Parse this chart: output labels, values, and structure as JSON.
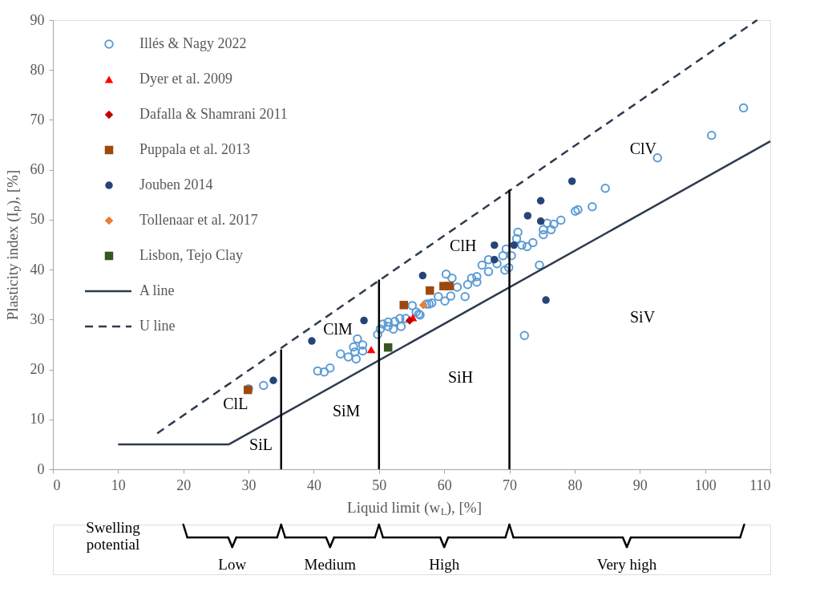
{
  "chart_data": {
    "type": "scatter",
    "xlabel": "Liquid limit (w$_{L}$), [%]",
    "ylabel": "Plasticity index (Iₚ), [%]",
    "xlim": [
      0,
      110
    ],
    "xticks": [
      0,
      10,
      20,
      30,
      40,
      50,
      60,
      70,
      80,
      90,
      100,
      110
    ],
    "ylim": [
      0,
      90
    ],
    "yticks": [
      0,
      10,
      20,
      30,
      40,
      50,
      60,
      70,
      80,
      90
    ],
    "grid": false,
    "legend": "top left",
    "series": [
      {
        "name": "Illés & Nagy  2022",
        "marker": "circle",
        "color": "#5b9bd5",
        "x": [
          30.0,
          32.3,
          40.6,
          41.6,
          42.5,
          44.1,
          45.3,
          46.5,
          46.3,
          47.5,
          46.1,
          47.5,
          46.7,
          49.8,
          50.2,
          50.6,
          51.4,
          52.2,
          51.4,
          52.4,
          53.2,
          53.4,
          54.1,
          55.1,
          55.7,
          56.3,
          57.7,
          56.1,
          57.3,
          58.1,
          59.1,
          60.1,
          61.0,
          60.3,
          61.2,
          62.0,
          63.2,
          63.6,
          64.2,
          65.0,
          65.0,
          65.8,
          66.8,
          66.8,
          68.1,
          69.0,
          69.3,
          69.9,
          69.5,
          70.3,
          71.3,
          71.1,
          71.9,
          72.7,
          73.6,
          74.6,
          75.2,
          75.2,
          75.8,
          76.4,
          76.8,
          77.9,
          80.1,
          80.5,
          82.7,
          84.7,
          72.3,
          92.7,
          101.0,
          105.9
        ],
        "values": [
          16.1,
          16.8,
          19.7,
          19.5,
          20.3,
          23.1,
          22.5,
          22.1,
          23.5,
          23.7,
          24.5,
          24.9,
          26.1,
          27.0,
          28.1,
          29.1,
          28.6,
          28.1,
          29.5,
          29.6,
          30.2,
          28.6,
          30.2,
          32.8,
          31.5,
          30.9,
          33.1,
          31.1,
          33.1,
          33.3,
          34.6,
          33.7,
          34.7,
          39.1,
          38.3,
          36.5,
          34.6,
          37.0,
          38.3,
          38.6,
          37.5,
          40.9,
          42.0,
          39.6,
          41.2,
          42.8,
          39.9,
          40.4,
          44.1,
          42.8,
          47.5,
          46.2,
          44.9,
          44.6,
          45.4,
          40.9,
          47.0,
          48.0,
          49.3,
          48.0,
          49.1,
          49.9,
          51.7,
          52.0,
          52.6,
          56.3,
          26.8,
          62.4,
          66.9,
          72.4
        ]
      },
      {
        "name": "Dyer et al. 2009",
        "marker": "triangle",
        "color": "#ff0000",
        "x": [
          48.8,
          55.2
        ],
        "values": [
          24.0,
          30.4
        ]
      },
      {
        "name": "Dafalla & Shamrani 2011",
        "marker": "diamond",
        "color": "#c00000",
        "x": [
          54.7
        ],
        "values": [
          29.8
        ]
      },
      {
        "name": "Puppala et al. 2013",
        "marker": "square",
        "color": "#9e480e",
        "x": [
          29.9,
          53.8,
          57.8,
          59.9,
          60.8
        ],
        "values": [
          15.9,
          32.9,
          35.8,
          36.7,
          36.7
        ]
      },
      {
        "name": "Jouben 2014",
        "marker": "circle",
        "color": "#264478",
        "x": [
          33.8,
          39.7,
          47.7,
          56.7,
          67.7,
          67.7,
          70.7,
          72.8,
          74.8,
          74.8,
          79.6,
          75.6
        ],
        "values": [
          17.8,
          25.7,
          29.8,
          38.8,
          44.9,
          42.0,
          44.9,
          50.8,
          53.8,
          49.7,
          57.7,
          33.9
        ]
      },
      {
        "name": "Tollenaar et al. 2017",
        "marker": "diamond",
        "color": "#ed7d31",
        "x": [
          56.8
        ],
        "values": [
          32.9
        ]
      },
      {
        "name": "Lisbon, Tejo Clay",
        "marker": "square",
        "color": "#375623",
        "x": [
          51.4
        ],
        "values": [
          24.4
        ]
      },
      {
        "name": "A line",
        "type": "line",
        "line_style": "solid",
        "color": "#2e3b4e",
        "x": [
          10,
          27,
          110
        ],
        "values": [
          5,
          5,
          65.7
        ]
      },
      {
        "name": "U line",
        "type": "line",
        "line_style": "dashed",
        "color": "#2e3b4e",
        "x": [
          16,
          108
        ],
        "values": [
          7.2,
          90
        ]
      },
      {
        "type": "line",
        "line_style": "solid",
        "color": "#000000",
        "x": [
          35,
          35
        ],
        "values": [
          0,
          24
        ]
      },
      {
        "type": "line",
        "line_style": "solid",
        "color": "#000000",
        "x": [
          50,
          50
        ],
        "values": [
          0,
          38
        ]
      },
      {
        "type": "line",
        "line_style": "solid",
        "color": "#000000",
        "x": [
          70,
          70
        ],
        "values": [
          0,
          56
        ]
      }
    ],
    "annotations": [
      "ClL",
      "SiL",
      "ClM",
      "SiM",
      "SiH",
      "ClH",
      "ClV",
      "SiV",
      "Swelling potential",
      "Low",
      "Medium",
      "High",
      "Very high"
    ]
  }
}
